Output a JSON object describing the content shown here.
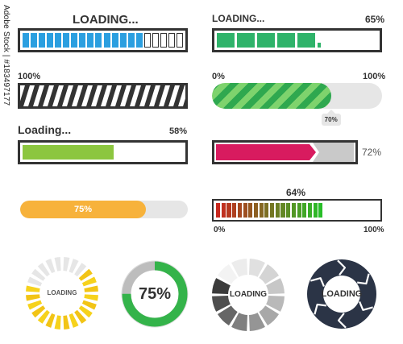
{
  "colors": {
    "dark": "#333333",
    "blue": "#2b9fe0",
    "green": "#2fb36a",
    "green_light": "#8cc63f",
    "stripe_green": "#5cc35c",
    "magenta": "#d81b5f",
    "orange": "#f7b23b",
    "gray_light": "#e6e6e6",
    "gray_mid": "#c9c9c9",
    "yellow": "#f6d21c",
    "navy": "#2b3446"
  },
  "widgets": {
    "blue_segmented": {
      "label": "LOADING...",
      "filled_segments": 15,
      "total_segments": 20
    },
    "green_blocks": {
      "label": "LOADING...",
      "percent_label": "65%",
      "progress": 0.65
    },
    "striped_dark": {
      "label": "100%",
      "progress": 1.0
    },
    "striped_green": {
      "start_label": "0%",
      "end_label": "100%",
      "value_tag": "70%",
      "progress": 0.7
    },
    "green_plain": {
      "label": "Loading...",
      "percent_label": "58%",
      "progress": 0.58
    },
    "magenta_arrow": {
      "percent_label": "72%",
      "progress": 0.72
    },
    "orange_pill": {
      "percent_label": "75%",
      "progress": 0.75
    },
    "gradient_bars": {
      "percent_label": "64%",
      "start_label": "0%",
      "end_label": "100%",
      "progress": 0.64
    },
    "yellow_ring": {
      "label": "LOADING"
    },
    "green_ring": {
      "percent_label": "75%",
      "progress": 0.75
    },
    "gray_ring": {
      "label": "LOADING"
    },
    "navy_ring": {
      "label": "LOADING"
    }
  },
  "stock": {
    "id_text": "Adobe Stock | #183497177"
  }
}
